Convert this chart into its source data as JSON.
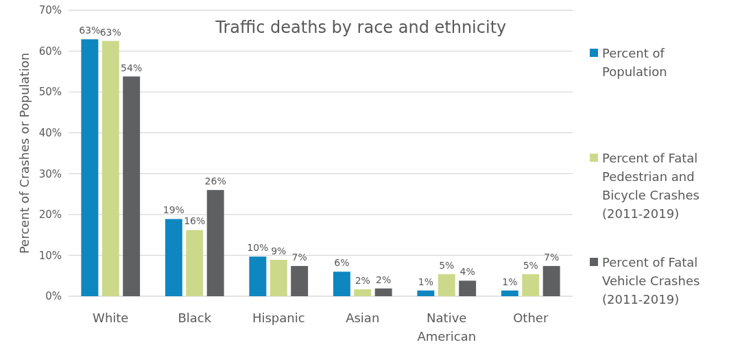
{
  "chart_data": {
    "type": "bar",
    "title": "Traffic deaths by race and ethnicity",
    "ylabel": "Percent of Crashes or Population",
    "categories": [
      "White",
      "Black",
      "Hispanic",
      "Asian",
      "Native American",
      "Other"
    ],
    "series": [
      {
        "name": "Percent of Population",
        "color": "#0e86c0",
        "values": [
          62.9,
          18.9,
          9.7,
          6.0,
          1.4,
          1.4
        ],
        "value_labels": [
          "63%",
          "19%",
          "10%",
          "6%",
          "1%",
          "1%"
        ]
      },
      {
        "name": "Percent of Fatal Pedestrian and Bicycle Crashes (2011-2019)",
        "color": "#cdd98a",
        "values": [
          62.5,
          16.2,
          8.9,
          1.7,
          5.4,
          5.4
        ],
        "value_labels": [
          "63%",
          "16%",
          "9%",
          "2%",
          "5%",
          "5%"
        ]
      },
      {
        "name": "Percent of Fatal Vehicle Crashes (2011-2019)",
        "color": "#5f6062",
        "values": [
          53.8,
          26.0,
          7.4,
          1.9,
          3.8,
          7.4
        ],
        "value_labels": [
          "54%",
          "26%",
          "7%",
          "2%",
          "4%",
          "7%"
        ]
      }
    ],
    "ylim": [
      0,
      70
    ],
    "yticks": [
      {
        "value": 0,
        "label": "0%"
      },
      {
        "value": 10,
        "label": "10%"
      },
      {
        "value": 20,
        "label": "20%"
      },
      {
        "value": 30,
        "label": "30%"
      },
      {
        "value": 40,
        "label": "40%"
      },
      {
        "value": 50,
        "label": "50%"
      },
      {
        "value": 60,
        "label": "60%"
      },
      {
        "value": 70,
        "label": "70%"
      }
    ],
    "grid": "y",
    "legend": "right"
  }
}
